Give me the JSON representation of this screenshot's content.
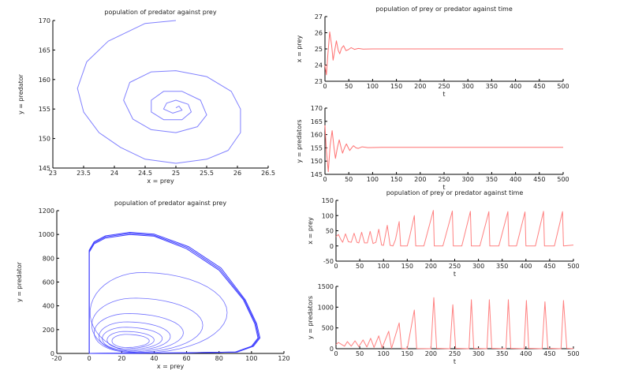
{
  "chart_data": [
    {
      "type": "line",
      "title": "population of predator against prey",
      "xlabel": "x = prey",
      "ylabel": "y = predator",
      "xlim": [
        23,
        26.5
      ],
      "ylim": [
        145,
        170
      ],
      "xticks": [
        "23",
        "23.5",
        "24",
        "24.5",
        "25",
        "25.5",
        "26",
        "26.5"
      ],
      "yticks": [
        "145",
        "150",
        "155",
        "160",
        "165",
        "170"
      ],
      "color": "#8080ff",
      "grid": false,
      "series": [
        {
          "points": [
            [
              25.0,
              170
            ],
            [
              24.5,
              169.5
            ],
            [
              23.9,
              166.5
            ],
            [
              23.55,
              163
            ],
            [
              23.4,
              158.5
            ],
            [
              23.5,
              154.5
            ],
            [
              23.75,
              151
            ],
            [
              24.1,
              148.5
            ],
            [
              24.5,
              146.5
            ],
            [
              25.0,
              145.8
            ],
            [
              25.5,
              146.5
            ],
            [
              25.85,
              148
            ],
            [
              26.05,
              151
            ],
            [
              26.05,
              155
            ],
            [
              25.9,
              158
            ],
            [
              25.5,
              160.5
            ],
            [
              25.0,
              161.5
            ],
            [
              24.6,
              161.3
            ],
            [
              24.25,
              159.5
            ],
            [
              24.15,
              156.5
            ],
            [
              24.3,
              153.3
            ],
            [
              24.6,
              151.5
            ],
            [
              25.0,
              151
            ],
            [
              25.35,
              152
            ],
            [
              25.5,
              154
            ],
            [
              25.4,
              156.5
            ],
            [
              25.1,
              158
            ],
            [
              24.8,
              158
            ],
            [
              24.6,
              156.5
            ],
            [
              24.6,
              154.5
            ],
            [
              24.8,
              153.2
            ],
            [
              25.1,
              153.2
            ],
            [
              25.25,
              154.5
            ],
            [
              25.2,
              155.8
            ],
            [
              25.0,
              156.5
            ],
            [
              24.85,
              156
            ],
            [
              24.8,
              155
            ],
            [
              24.95,
              154.3
            ],
            [
              25.1,
              154.8
            ],
            [
              25.05,
              155.5
            ],
            [
              25.0,
              155.2
            ]
          ]
        }
      ]
    },
    {
      "type": "line",
      "title": "population of prey or predator against time",
      "xlabel": "t",
      "ylabel": "x = prey",
      "xlim": [
        0,
        500
      ],
      "ylim": [
        23,
        27
      ],
      "xticks": [
        "0",
        "50",
        "100",
        "150",
        "200",
        "250",
        "300",
        "350",
        "400",
        "450",
        "500"
      ],
      "yticks": [
        "23",
        "24",
        "25",
        "26",
        "27"
      ],
      "color": "#ff7070",
      "grid": false,
      "series": [
        {
          "points": [
            [
              0,
              24
            ],
            [
              3,
              23.4
            ],
            [
              6,
              24.6
            ],
            [
              10,
              26.05
            ],
            [
              14,
              25.2
            ],
            [
              17,
              24.3
            ],
            [
              21,
              25.0
            ],
            [
              24,
              25.5
            ],
            [
              28,
              24.9
            ],
            [
              31,
              24.7
            ],
            [
              35,
              25.05
            ],
            [
              39,
              25.2
            ],
            [
              44,
              24.9
            ],
            [
              49,
              24.95
            ],
            [
              55,
              25.08
            ],
            [
              62,
              24.97
            ],
            [
              70,
              25.03
            ],
            [
              80,
              24.99
            ],
            [
              100,
              25.0
            ],
            [
              500,
              25.0
            ]
          ]
        }
      ]
    },
    {
      "type": "line",
      "title": "",
      "xlabel": "t",
      "ylabel": "y = predators",
      "xlim": [
        0,
        500
      ],
      "ylim": [
        145,
        170
      ],
      "xticks": [
        "0",
        "50",
        "100",
        "150",
        "200",
        "250",
        "300",
        "350",
        "400",
        "450",
        "500"
      ],
      "yticks": [
        "145",
        "150",
        "155",
        "160",
        "165",
        "170"
      ],
      "color": "#ff7070",
      "grid": false,
      "series": [
        {
          "points": [
            [
              0,
              163.5
            ],
            [
              3,
              154
            ],
            [
              7,
              146
            ],
            [
              11,
              156
            ],
            [
              15,
              161.5
            ],
            [
              19,
              155
            ],
            [
              22,
              151
            ],
            [
              26,
              155
            ],
            [
              30,
              158
            ],
            [
              34,
              155
            ],
            [
              37,
              153
            ],
            [
              41,
              155
            ],
            [
              45,
              156.5
            ],
            [
              49,
              155
            ],
            [
              52,
              154
            ],
            [
              56,
              155
            ],
            [
              60,
              155.8
            ],
            [
              65,
              155
            ],
            [
              70,
              154.8
            ],
            [
              78,
              155.4
            ],
            [
              90,
              155.1
            ],
            [
              120,
              155.2
            ],
            [
              500,
              155.2
            ]
          ]
        }
      ]
    },
    {
      "type": "line",
      "title": "population of predator against prey",
      "xlabel": "x = prey",
      "ylabel": "y = predator",
      "xlim": [
        -20,
        120
      ],
      "ylim": [
        0,
        1200
      ],
      "xticks": [
        "-20",
        "0",
        "20",
        "40",
        "60",
        "80",
        "100",
        "120"
      ],
      "yticks": [
        "0",
        "200",
        "400",
        "600",
        "800",
        "1000",
        "1200"
      ],
      "color": "#4040ff",
      "grid": false,
      "limit_cycle": [
        [
          0,
          0
        ],
        [
          0,
          850
        ],
        [
          3,
          920
        ],
        [
          10,
          970
        ],
        [
          25,
          1000
        ],
        [
          40,
          985
        ],
        [
          60,
          880
        ],
        [
          80,
          700
        ],
        [
          95,
          450
        ],
        [
          102,
          250
        ],
        [
          104,
          130
        ],
        [
          100,
          60
        ],
        [
          90,
          12
        ],
        [
          60,
          5
        ],
        [
          20,
          2
        ],
        [
          0,
          0
        ]
      ],
      "inner_loops": [
        {
          "xmin": 14,
          "xmax": 37,
          "ymin": 50,
          "ymax": 160
        },
        {
          "xmin": 11,
          "xmax": 40,
          "ymin": 40,
          "ymax": 185
        },
        {
          "xmin": 8,
          "xmax": 45,
          "ymin": 30,
          "ymax": 220
        },
        {
          "xmin": 6,
          "xmax": 50,
          "ymin": 20,
          "ymax": 265
        },
        {
          "xmin": 3,
          "xmax": 58,
          "ymin": 12,
          "ymax": 335
        },
        {
          "xmin": 1.5,
          "xmax": 70,
          "ymin": 8,
          "ymax": 465
        },
        {
          "xmin": 0.5,
          "xmax": 85,
          "ymin": 5,
          "ymax": 680
        }
      ]
    },
    {
      "type": "line",
      "title": "population of prey or predator against time",
      "xlabel": "t",
      "ylabel": "x = prey",
      "xlim": [
        0,
        500
      ],
      "ylim": [
        -50,
        150
      ],
      "xticks": [
        "0",
        "50",
        "100",
        "150",
        "200",
        "250",
        "300",
        "350",
        "400",
        "450",
        "500"
      ],
      "yticks": [
        "-50",
        "0",
        "50",
        "100",
        "150"
      ],
      "color": "#ff8080",
      "grid": false,
      "series": [
        {
          "points": [
            [
              0,
              30
            ],
            [
              5,
              38
            ],
            [
              10,
              22
            ],
            [
              14,
              12
            ],
            [
              20,
              40
            ],
            [
              26,
              14
            ],
            [
              32,
              12
            ],
            [
              38,
              42
            ],
            [
              44,
              12
            ],
            [
              48,
              10
            ],
            [
              54,
              45
            ],
            [
              60,
              10
            ],
            [
              66,
              10
            ],
            [
              72,
              48
            ],
            [
              78,
              8
            ],
            [
              84,
              12
            ],
            [
              90,
              55
            ],
            [
              96,
              3
            ],
            [
              100,
              2
            ],
            [
              108,
              68
            ],
            [
              114,
              2
            ],
            [
              120,
              0
            ],
            [
              125,
              20
            ],
            [
              133,
              80
            ],
            [
              136,
              0
            ],
            [
              150,
              0
            ],
            [
              155,
              30
            ],
            [
              165,
              100
            ],
            [
              168,
              0
            ],
            [
              185,
              0
            ],
            [
              205,
              117
            ],
            [
              207,
              0
            ],
            [
              225,
              0
            ],
            [
              245,
              115
            ],
            [
              247,
              0
            ],
            [
              265,
              0
            ],
            [
              283,
              114
            ],
            [
              285,
              0
            ],
            [
              303,
              0
            ],
            [
              322,
              113
            ],
            [
              324,
              0
            ],
            [
              343,
              0
            ],
            [
              362,
              113
            ],
            [
              364,
              0
            ],
            [
              380,
              0
            ],
            [
              398,
              112
            ],
            [
              400,
              0
            ],
            [
              420,
              0
            ],
            [
              437,
              114
            ],
            [
              439,
              0
            ],
            [
              460,
              0
            ],
            [
              477,
              113
            ],
            [
              479,
              0
            ],
            [
              500,
              3
            ]
          ]
        }
      ]
    },
    {
      "type": "line",
      "title": "",
      "xlabel": "t",
      "ylabel": "y = predators",
      "xlim": [
        0,
        500
      ],
      "ylim": [
        0,
        1500
      ],
      "xticks": [
        "0",
        "50",
        "100",
        "150",
        "200",
        "250",
        "300",
        "350",
        "400",
        "450",
        "500"
      ],
      "yticks": [
        "0",
        "500",
        "1000",
        "1500"
      ],
      "color": "#ff8080",
      "grid": false,
      "series": [
        {
          "points": [
            [
              0,
              100
            ],
            [
              5,
              150
            ],
            [
              12,
              100
            ],
            [
              18,
              60
            ],
            [
              24,
              170
            ],
            [
              32,
              60
            ],
            [
              40,
              190
            ],
            [
              48,
              50
            ],
            [
              57,
              210
            ],
            [
              65,
              40
            ],
            [
              73,
              250
            ],
            [
              80,
              30
            ],
            [
              90,
              310
            ],
            [
              97,
              20
            ],
            [
              111,
              420
            ],
            [
              117,
              10
            ],
            [
              133,
              620
            ],
            [
              138,
              10
            ],
            [
              150,
              0
            ],
            [
              165,
              930
            ],
            [
              170,
              5
            ],
            [
              200,
              0
            ],
            [
              206,
              1230
            ],
            [
              212,
              10
            ],
            [
              240,
              0
            ],
            [
              246,
              1060
            ],
            [
              252,
              10
            ],
            [
              280,
              0
            ],
            [
              285,
              1180
            ],
            [
              290,
              10
            ],
            [
              318,
              0
            ],
            [
              323,
              1180
            ],
            [
              328,
              10
            ],
            [
              358,
              0
            ],
            [
              363,
              1180
            ],
            [
              368,
              10
            ],
            [
              396,
              0
            ],
            [
              401,
              1160
            ],
            [
              406,
              10
            ],
            [
              434,
              0
            ],
            [
              440,
              1130
            ],
            [
              446,
              10
            ],
            [
              474,
              0
            ],
            [
              479,
              1160
            ],
            [
              486,
              10
            ],
            [
              500,
              0
            ]
          ]
        }
      ]
    }
  ]
}
